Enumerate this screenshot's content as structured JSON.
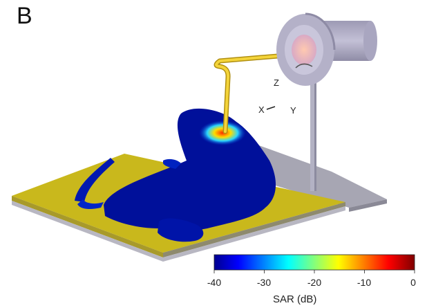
{
  "panel_label": "B",
  "axes": {
    "z": "Z",
    "x": "X",
    "y": "Y"
  },
  "colorbar": {
    "label": "SAR (dB)",
    "ticks": [
      "-40",
      "-30",
      "-20",
      "-10",
      "0"
    ],
    "min": -40,
    "max": 0,
    "colormap": [
      "#00008f",
      "#0000ff",
      "#00ffff",
      "#ffff00",
      "#ff0000",
      "#800000"
    ]
  },
  "colors": {
    "ground_plane": "#c9b81c",
    "ground_plane_edge": "#8e8a6e",
    "mount_plate": "#a7a6b3",
    "phantom": "#00109a",
    "hotspot": "#ff3a00",
    "probe_cable": "#e8c21f",
    "coil_housing": "#b4b1c8"
  }
}
